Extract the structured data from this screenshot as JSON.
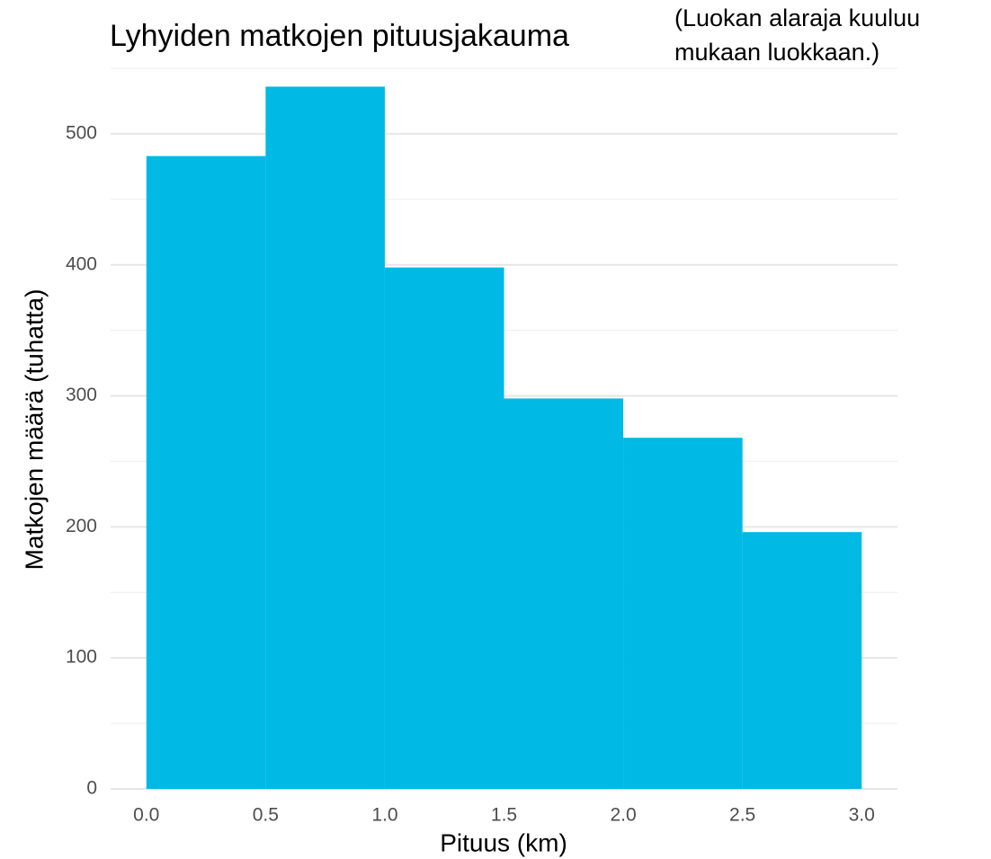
{
  "chart_data": {
    "type": "histogram",
    "title": "Lyhyiden matkojen pituusjakauma",
    "annotation": [
      "(Luokan alaraja kuuluu",
      "mukaan luokkaan.)"
    ],
    "x_label": "Pituus (km)",
    "y_label": "Matkojen määrä (tuhatta)",
    "bins": [
      0,
      0.5,
      1,
      1.5,
      2,
      2.5,
      3
    ],
    "values": [
      483,
      536,
      398,
      298,
      268,
      196
    ],
    "color": "#00b9e4",
    "xlim": [
      -0.15,
      3.15
    ],
    "ylim": [
      0,
      550
    ],
    "xticks": [
      {
        "value": 0,
        "label": "0.0"
      },
      0.5,
      {
        "value": 1,
        "label": "1.0"
      },
      1.5,
      {
        "value": 2,
        "label": "2.0"
      },
      2.5,
      {
        "value": 3,
        "label": "3.0"
      }
    ],
    "yticks": [
      0,
      100,
      200,
      300,
      400,
      500
    ],
    "yminorticks": [
      50,
      150,
      250,
      350,
      450,
      550
    ],
    "grid": true
  }
}
